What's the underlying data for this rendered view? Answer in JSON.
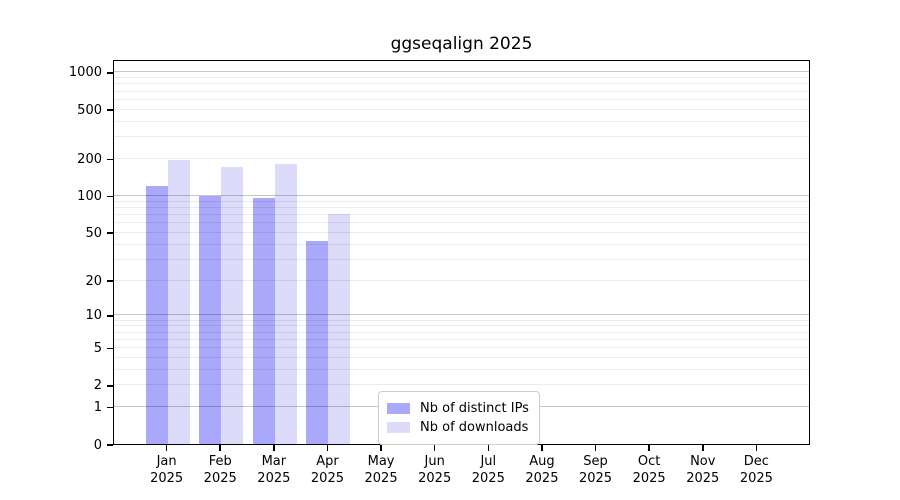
{
  "chart_data": {
    "type": "bar",
    "title": "ggseqalign 2025",
    "scale": "log1p",
    "grid": true,
    "x_year": "2025",
    "categories": [
      "Jan",
      "Feb",
      "Mar",
      "Apr",
      "May",
      "Jun",
      "Jul",
      "Aug",
      "Sep",
      "Oct",
      "Nov",
      "Dec"
    ],
    "series": [
      {
        "name": "Nb of distinct IPs",
        "color": "#aaa8fa",
        "values": [
          120,
          100,
          95,
          42,
          0,
          0,
          0,
          0,
          0,
          0,
          0,
          0
        ]
      },
      {
        "name": "Nb of downloads",
        "color": "#dcdbfa",
        "values": [
          195,
          170,
          180,
          70,
          0,
          0,
          0,
          0,
          0,
          0,
          0,
          0
        ]
      }
    ],
    "y_ticks": [
      0,
      1,
      2,
      5,
      10,
      20,
      50,
      100,
      200,
      500,
      1000
    ],
    "y_major_gridlines": [
      1,
      10,
      100,
      1000
    ],
    "y_minor_gridlines": [
      2,
      3,
      4,
      5,
      6,
      7,
      8,
      9,
      20,
      30,
      40,
      50,
      60,
      70,
      80,
      90,
      200,
      300,
      400,
      500,
      600,
      700,
      800,
      900
    ],
    "ylim": [
      0,
      1300
    ],
    "legend_position": "lower-center-left"
  },
  "legend": {
    "items": [
      {
        "label": "Nb of distinct IPs"
      },
      {
        "label": "Nb of downloads"
      }
    ]
  }
}
